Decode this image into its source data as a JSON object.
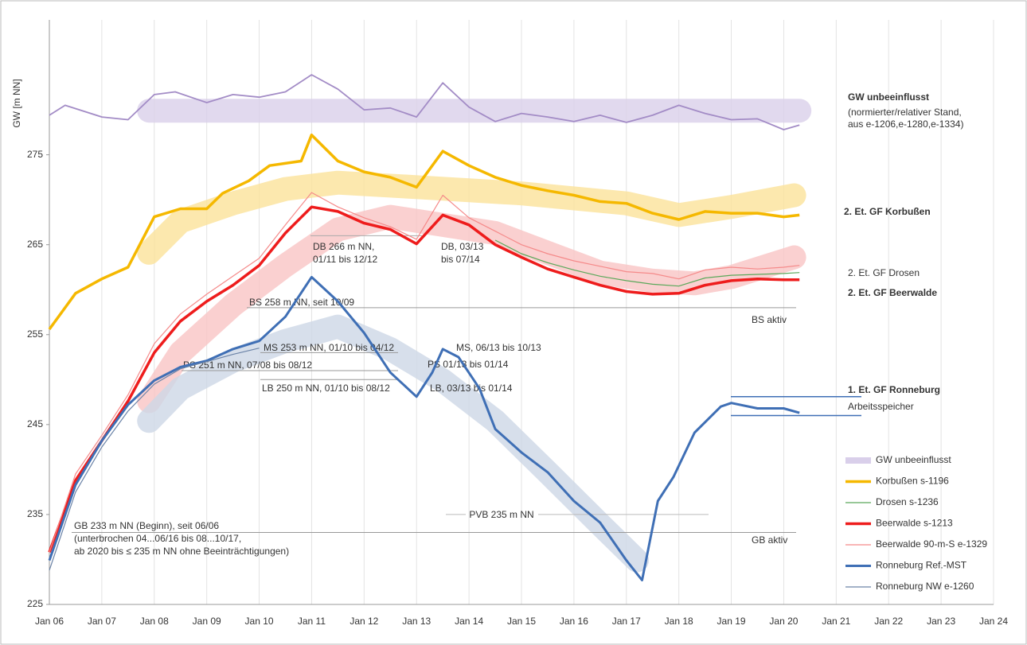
{
  "chart_data": {
    "type": "line",
    "ylabel": "GW [m NN]",
    "ylim": [
      225,
      290
    ],
    "yticks": [
      225,
      235,
      245,
      255,
      265,
      275
    ],
    "xlim": [
      2006,
      2024
    ],
    "xticks": [
      {
        "value": 2006,
        "label": "Jan 06"
      },
      {
        "value": 2007,
        "label": "Jan 07"
      },
      {
        "value": 2008,
        "label": "Jan 08"
      },
      {
        "value": 2009,
        "label": "Jan 09"
      },
      {
        "value": 2010,
        "label": "Jan 10"
      },
      {
        "value": 2011,
        "label": "Jan 11"
      },
      {
        "value": 2012,
        "label": "Jan 12"
      },
      {
        "value": 2013,
        "label": "Jan 13"
      },
      {
        "value": 2014,
        "label": "Jan 14"
      },
      {
        "value": 2015,
        "label": "Jan 15"
      },
      {
        "value": 2016,
        "label": "Jan 16"
      },
      {
        "value": 2017,
        "label": "Jan 17"
      },
      {
        "value": 2018,
        "label": "Jan 18"
      },
      {
        "value": 2019,
        "label": "Jan 19"
      },
      {
        "value": 2020,
        "label": "Jan 20"
      },
      {
        "value": 2021,
        "label": "Jan 21"
      },
      {
        "value": 2022,
        "label": "Jan 22"
      },
      {
        "value": 2023,
        "label": "Jan 23"
      },
      {
        "value": 2024,
        "label": "Jan 24"
      }
    ],
    "grid": true,
    "legend": "lower right",
    "series": [
      {
        "name": "GW unbeeinflusst",
        "color": "#a38cc6",
        "x": [
          2006.0,
          2006.3,
          2007.0,
          2007.5,
          2008.0,
          2008.4,
          2009.0,
          2009.5,
          2010.0,
          2010.5,
          2011.0,
          2011.5,
          2012.0,
          2012.5,
          2013.0,
          2013.5,
          2014.0,
          2014.5,
          2015.0,
          2015.5,
          2016.0,
          2016.5,
          2017.0,
          2017.5,
          2018.0,
          2018.5,
          2019.0,
          2019.5,
          2020.0,
          2020.3
        ],
        "values": [
          279.4,
          280.5,
          279.2,
          278.9,
          281.7,
          282,
          280.8,
          281.7,
          281.4,
          282,
          283.9,
          282.3,
          280,
          280.2,
          279.2,
          283,
          280.3,
          278.7,
          279.6,
          279.2,
          278.7,
          279.4,
          278.6,
          279.4,
          280.5,
          279.6,
          278.9,
          279,
          277.8,
          278.3
        ]
      },
      {
        "name": "Korbußen s-1196",
        "color": "#f5b800",
        "x": [
          2006.0,
          2006.5,
          2007.0,
          2007.5,
          2008.0,
          2008.5,
          2009.0,
          2009.3,
          2009.8,
          2010.2,
          2010.8,
          2011.0,
          2011.5,
          2012.0,
          2012.5,
          2013.0,
          2013.5,
          2014.0,
          2014.5,
          2015.0,
          2015.5,
          2016.0,
          2016.5,
          2017.0,
          2017.5,
          2018.0,
          2018.5,
          2019.0,
          2019.5,
          2020.0,
          2020.3
        ],
        "values": [
          255.6,
          259.6,
          261.2,
          262.5,
          268.1,
          269,
          269,
          270.7,
          272.1,
          273.8,
          274.3,
          277.2,
          274.3,
          273.1,
          272.5,
          271.4,
          275.4,
          273.8,
          272.5,
          271.6,
          271,
          270.5,
          269.8,
          269.6,
          268.5,
          267.8,
          268.7,
          268.5,
          268.5,
          268.1,
          268.3
        ]
      },
      {
        "name": "Drosen s-1236",
        "color": "#5aa85a",
        "x": [
          2014.5,
          2015.0,
          2015.5,
          2016.0,
          2016.5,
          2017.0,
          2017.5,
          2018.0,
          2018.5,
          2019.0,
          2019.5,
          2020.0,
          2020.3
        ],
        "values": [
          265.5,
          264,
          263,
          262.2,
          261.5,
          261,
          260.6,
          260.4,
          261.3,
          261.6,
          261.7,
          261.8,
          261.9
        ]
      },
      {
        "name": "Beerwalde s-1213",
        "color": "#ee1c1c",
        "x": [
          2006.0,
          2006.5,
          2007.0,
          2007.5,
          2008.0,
          2008.5,
          2009.0,
          2009.5,
          2010.0,
          2010.5,
          2011.0,
          2011.5,
          2012.0,
          2012.5,
          2013.0,
          2013.5,
          2014.0,
          2014.5,
          2015.0,
          2015.5,
          2016.0,
          2016.5,
          2017.0,
          2017.5,
          2018.0,
          2018.5,
          2019.0,
          2019.5,
          2020.0,
          2020.3
        ],
        "values": [
          230.8,
          238.8,
          243.2,
          247.6,
          253,
          256.5,
          258.7,
          260.5,
          262.7,
          266.3,
          269.2,
          268.7,
          267.4,
          266.7,
          265.1,
          268.3,
          267.2,
          265,
          263.6,
          262.3,
          261.4,
          260.5,
          259.8,
          259.5,
          259.6,
          260.5,
          261,
          261.2,
          261.1,
          261.1
        ]
      },
      {
        "name": "Beerwalde 90-m-S e-1329",
        "color": "#f58a8a",
        "x": [
          2006.0,
          2006.5,
          2007.0,
          2007.5,
          2008.0,
          2008.5,
          2009.0,
          2009.5,
          2010.0,
          2010.5,
          2011.0,
          2011.5,
          2012.0,
          2012.5,
          2013.0,
          2013.5,
          2014.0,
          2014.5,
          2015.0,
          2015.5,
          2016.0,
          2016.5,
          2017.0,
          2017.5,
          2018.0,
          2018.5,
          2019.0,
          2019.5,
          2020.0,
          2020.3
        ],
        "values": [
          230.8,
          239.5,
          243.8,
          248.3,
          254,
          257.3,
          259.5,
          261.5,
          263.5,
          267.2,
          270.8,
          269.2,
          268,
          267,
          265.6,
          270.5,
          268,
          266.5,
          265,
          264,
          263.2,
          262.6,
          262,
          261.8,
          261.2,
          262.2,
          262.5,
          262.3,
          262.5,
          262.7
        ]
      },
      {
        "name": "Ronneburg Ref.-MST",
        "color": "#3f6fb5",
        "x": [
          2006.0,
          2006.5,
          2007.0,
          2007.5,
          2008.0,
          2008.5,
          2009.0,
          2009.5,
          2010.0,
          2010.5,
          2011.0,
          2011.5,
          2012.0,
          2012.5,
          2013.0,
          2013.3,
          2013.5,
          2013.8,
          2014.2,
          2014.5,
          2015.0,
          2015.5,
          2016.0,
          2016.5,
          2017.0,
          2017.3,
          2017.6,
          2017.9,
          2018.3,
          2018.8,
          2019.0,
          2019.5,
          2020.0,
          2020.3
        ],
        "values": [
          229.9,
          238.3,
          243.2,
          247.2,
          249.9,
          251.4,
          252.1,
          253.4,
          254.3,
          257,
          261.4,
          258.7,
          255.2,
          250.8,
          248.1,
          250.8,
          253.4,
          252.5,
          249,
          244.5,
          241.9,
          239.7,
          236.5,
          234.1,
          229.9,
          227.7,
          236.5,
          239.2,
          244.1,
          247,
          247.4,
          246.8,
          246.8,
          246.3
        ]
      },
      {
        "name": "Ronneburg NW e-1260",
        "color": "#6c84a8",
        "x": [
          2006.0,
          2006.5,
          2007.0,
          2007.5,
          2008.0,
          2008.5,
          2009.0,
          2009.5,
          2010.0
        ],
        "values": [
          228.8,
          237.5,
          242.5,
          246.5,
          249.5,
          251.2,
          252,
          252.8,
          253.5
        ]
      }
    ],
    "bands": [
      {
        "color": "#d9cfea",
        "x": [
          2007.9,
          2020.3
        ],
        "values": [
          279.9,
          279.9
        ]
      },
      {
        "color": "#fbe29a",
        "x": [
          2007.9,
          2008.5,
          2009.5,
          2010.5,
          2011.5,
          2013.0,
          2015.0,
          2017.0,
          2018.0,
          2019.0,
          2020.2
        ],
        "values": [
          264.1,
          267.6,
          269.6,
          271.2,
          271.9,
          271.4,
          270.7,
          269.6,
          268.3,
          269.2,
          270.5
        ]
      },
      {
        "color": "#f9c4c4",
        "x": [
          2007.9,
          2008.5,
          2009.5,
          2010.5,
          2011.5,
          2012.5,
          2013.5,
          2014.5,
          2015.5,
          2016.5,
          2017.5,
          2018.3,
          2019.0,
          2020.2
        ],
        "values": [
          247.6,
          253,
          258.3,
          262.7,
          266.7,
          268.1,
          267.2,
          266.3,
          264.1,
          261.9,
          261,
          260.7,
          261.4,
          263.6
        ]
      },
      {
        "color": "#cdd7e6",
        "x": [
          2007.9,
          2008.5,
          2009.5,
          2010.5,
          2011.5,
          2012.5,
          2013.5,
          2014.5,
          2015.5,
          2016.5,
          2017.2
        ],
        "values": [
          245.4,
          249,
          252.1,
          254.3,
          255.9,
          253.4,
          249.9,
          245.4,
          239.7,
          233.9,
          229.9
        ]
      }
    ],
    "annotations": [
      {
        "text": [
          "DB 266 m NN,",
          "01/11 bis 12/12"
        ],
        "level": 266
      },
      {
        "text": [
          "DB, 03/13",
          "bis 07/14"
        ]
      },
      {
        "text": [
          "BS 258 m NN, seit 10/09"
        ],
        "level": 258
      },
      {
        "text": [
          "BS aktiv"
        ]
      },
      {
        "text": [
          "MS 253 m NN, 01/10 bis 04/12"
        ],
        "level": 253
      },
      {
        "text": [
          "MS, 06/13 bis 10/13"
        ]
      },
      {
        "text": [
          "PS   251 m NN, 07/08 bis 08/12"
        ],
        "level": 251
      },
      {
        "text": [
          "PS  01/13 bis 01/14"
        ]
      },
      {
        "text": [
          "LB  250 m NN, 01/10 bis 08/12"
        ],
        "level": 250
      },
      {
        "text": [
          "LB, 03/13  bis 01/14"
        ]
      },
      {
        "text": [
          "PVB 235 m NN"
        ],
        "level": 235
      },
      {
        "text": [
          "GB 233 m NN (Beginn), seit 06/06",
          "(unterbrochen 04...06/16 bis 08...10/17,",
          "ab 2020  bis ≤ 235 m NN ohne Beeinträchtigungen)"
        ],
        "level": 233
      },
      {
        "text": [
          "GB aktiv"
        ]
      },
      {
        "text": [
          "GW unbeeinflusst"
        ]
      },
      {
        "text": [
          "(normierter/relativer Stand,",
          "aus e-1206,e-1280,e-1334)"
        ]
      },
      {
        "text": [
          "2. Et. GF Korbußen"
        ]
      },
      {
        "text": [
          "2. Et. GF Drosen"
        ]
      },
      {
        "text": [
          "2. Et. GF Beerwalde"
        ]
      },
      {
        "text": [
          "1. Et. GF Ronneburg"
        ]
      },
      {
        "text": [
          "Arbeitsspeicher"
        ],
        "range": [
          246,
          248.1
        ]
      }
    ]
  }
}
